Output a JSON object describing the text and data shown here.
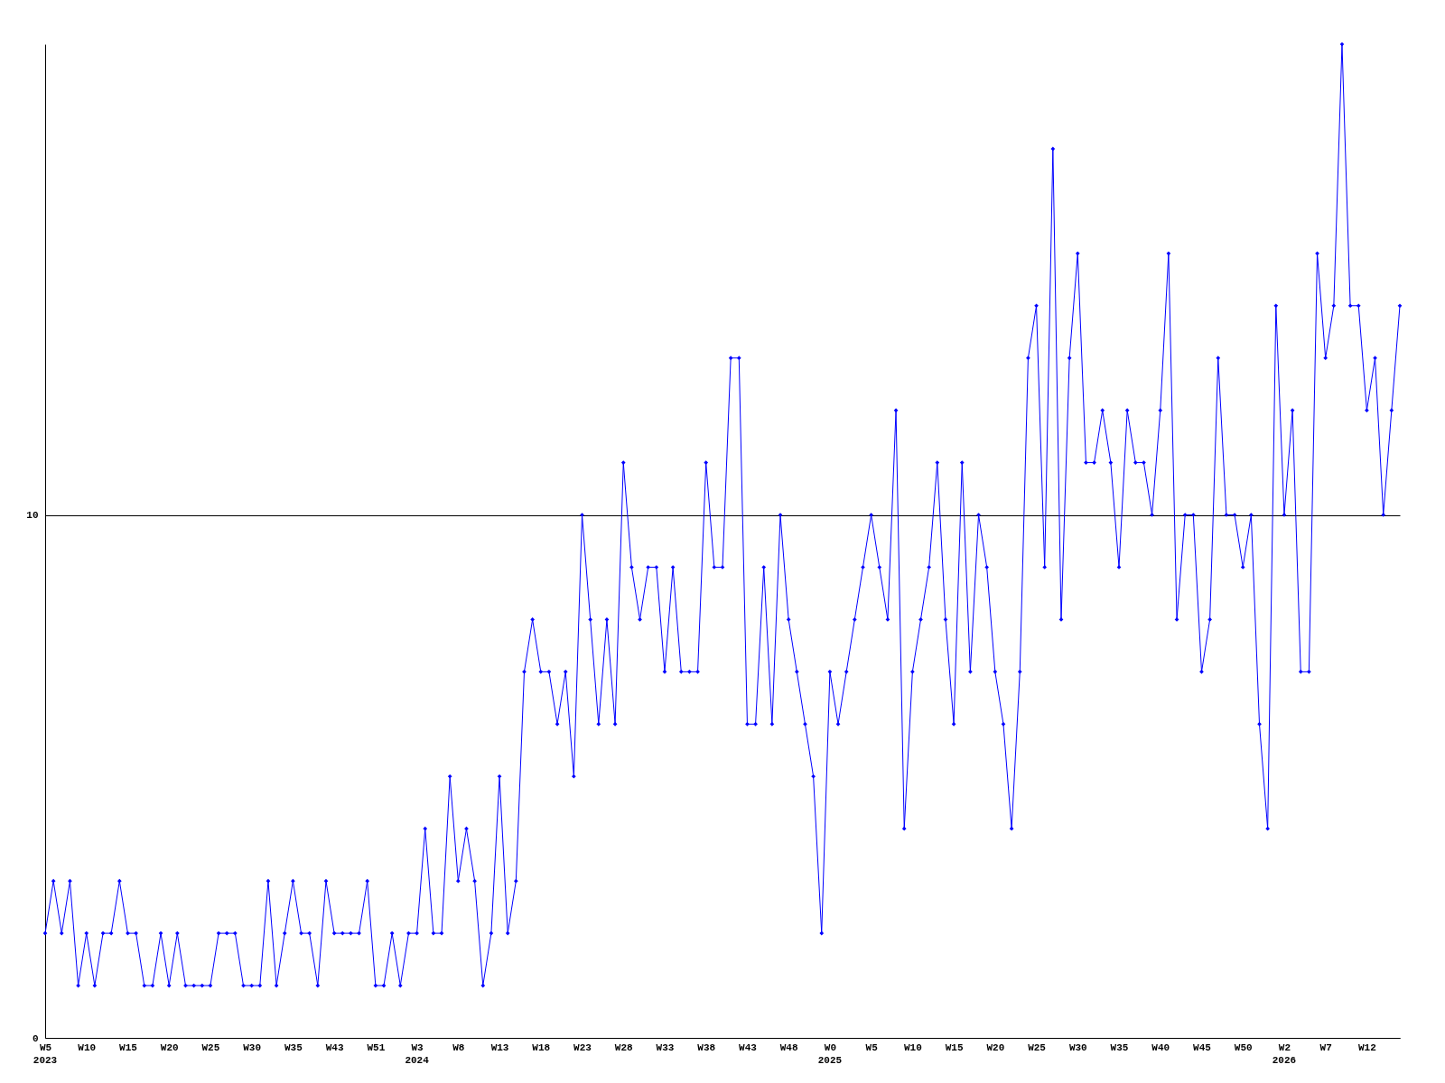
{
  "chart_data": {
    "type": "line",
    "categories": [
      "W5",
      null,
      null,
      null,
      null,
      "W10",
      null,
      null,
      null,
      null,
      "W15",
      null,
      null,
      null,
      null,
      "W20",
      null,
      null,
      null,
      null,
      "W25",
      null,
      null,
      null,
      null,
      "W30",
      null,
      null,
      null,
      null,
      "W35",
      null,
      null,
      null,
      null,
      "W43",
      null,
      null,
      null,
      null,
      "W51",
      null,
      null,
      null,
      null,
      "W3",
      null,
      null,
      null,
      null,
      "W8",
      null,
      null,
      null,
      null,
      "W13",
      null,
      null,
      null,
      null,
      "W18",
      null,
      null,
      null,
      null,
      "W23",
      null,
      null,
      null,
      null,
      "W28",
      null,
      null,
      null,
      null,
      "W33",
      null,
      null,
      null,
      null,
      "W38",
      null,
      null,
      null,
      null,
      "W43",
      null,
      null,
      null,
      null,
      "W48",
      null,
      null,
      null,
      null,
      "W0",
      null,
      null,
      null,
      null,
      "W5",
      null,
      null,
      null,
      null,
      "W10",
      null,
      null,
      null,
      null,
      "W15",
      null,
      null,
      null,
      null,
      "W20",
      null,
      null,
      null,
      null,
      "W25",
      null,
      null,
      null,
      null,
      "W30",
      null,
      null,
      null,
      null,
      "W35",
      null,
      null,
      null,
      null,
      "W40",
      null,
      null,
      null,
      null,
      "W45",
      null,
      null,
      null,
      null,
      "W50",
      null,
      null,
      null,
      null,
      "W2",
      null,
      null,
      null,
      null,
      "W7",
      null,
      null,
      null,
      null,
      "W12",
      null,
      null,
      null,
      null
    ],
    "series": [
      {
        "color": "#0000ff",
        "values": [
          2,
          3,
          2,
          3,
          1,
          2,
          1,
          2,
          2,
          3,
          2,
          2,
          1,
          1,
          2,
          1,
          2,
          1,
          1,
          1,
          1,
          2,
          2,
          2,
          1,
          1,
          1,
          3,
          1,
          2,
          3,
          2,
          2,
          1,
          3,
          2,
          2,
          2,
          2,
          3,
          1,
          1,
          2,
          1,
          2,
          2,
          4,
          2,
          2,
          5,
          3,
          4,
          3,
          1,
          2,
          5,
          2,
          3,
          7,
          8,
          7,
          7,
          6,
          7,
          5,
          10,
          8,
          6,
          8,
          6,
          11,
          9,
          8,
          9,
          9,
          7,
          9,
          7,
          7,
          7,
          11,
          9,
          9,
          13,
          13,
          6,
          6,
          9,
          6,
          10,
          8,
          7,
          6,
          5,
          2,
          7,
          6,
          7,
          8,
          9,
          10,
          9,
          8,
          12,
          4,
          7,
          8,
          9,
          11,
          8,
          6,
          11,
          7,
          10,
          9,
          7,
          6,
          4,
          7,
          13,
          14,
          9,
          17,
          8,
          13,
          15,
          11,
          11,
          12,
          11,
          9,
          12,
          11,
          11,
          10,
          12,
          15,
          8,
          10,
          10,
          7,
          8,
          13,
          10,
          10,
          9,
          10,
          6,
          4,
          14,
          10,
          12,
          7,
          7,
          15,
          13,
          14,
          19,
          14,
          14,
          12,
          13,
          10,
          12,
          14
        ]
      }
    ],
    "ylim": [
      0,
      19
    ],
    "yticks": [
      0,
      10
    ],
    "grid": "y",
    "marker": "diamond",
    "line_style": "solid",
    "annotations": [
      "2023",
      "2024",
      "2025",
      "2026"
    ]
  }
}
